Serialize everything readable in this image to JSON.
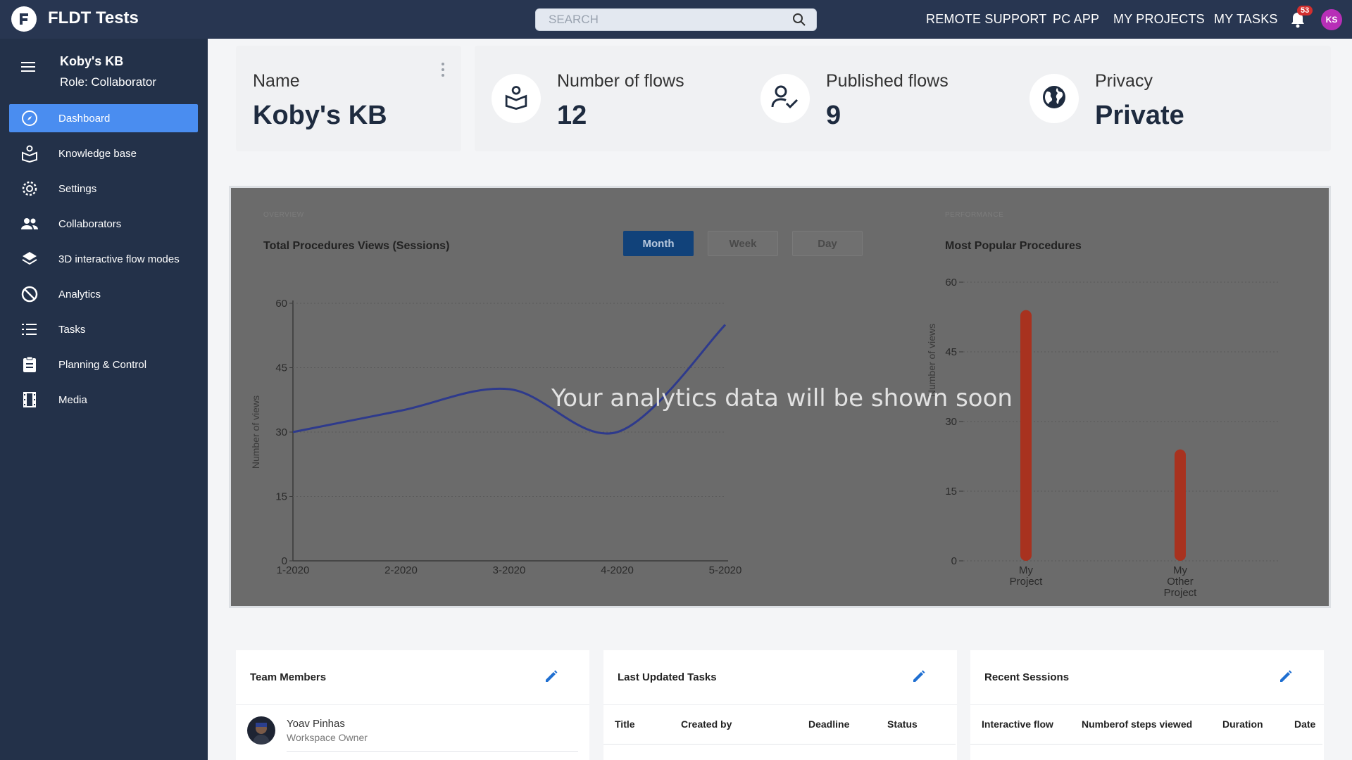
{
  "app": {
    "title": "FLDT Tests"
  },
  "search": {
    "placeholder": "SEARCH"
  },
  "topnav": [
    "REMOTE SUPPORT",
    "PC APP",
    "MY PROJECTS",
    "MY TASKS"
  ],
  "notifications": {
    "count": "53"
  },
  "user": {
    "initials": "KS"
  },
  "sidebar": {
    "kb_name": "Koby's KB",
    "role": "Role: Collaborator",
    "items": [
      {
        "label": "Dashboard",
        "icon": "compass-icon",
        "active": true
      },
      {
        "label": "Knowledge base",
        "icon": "book-user-icon"
      },
      {
        "label": "Settings",
        "icon": "gear-icon"
      },
      {
        "label": "Collaborators",
        "icon": "people-icon"
      },
      {
        "label": "3D interactive flow modes",
        "icon": "layers-icon"
      },
      {
        "label": "Analytics",
        "icon": "analytics-icon"
      },
      {
        "label": "Tasks",
        "icon": "list-icon"
      },
      {
        "label": "Planning & Control",
        "icon": "clipboard-icon"
      },
      {
        "label": "Media",
        "icon": "film-icon"
      }
    ]
  },
  "stats": {
    "name_label": "Name",
    "name_value": "Koby's KB",
    "flows_label": "Number of flows",
    "flows_value": "12",
    "published_label": "Published flows",
    "published_value": "9",
    "privacy_label": "Privacy",
    "privacy_value": "Private"
  },
  "analytics": {
    "overlay": "Your analytics data will be shown soon",
    "overview_sub": "OVERVIEW",
    "overview_title": "Total Procedures Views (Sessions)",
    "performance_sub": "PERFORMANCE",
    "performance_title": "Most Popular Procedures",
    "periods": [
      "Month",
      "Week",
      "Day"
    ],
    "active_period": "Month"
  },
  "chart_data": [
    {
      "type": "line",
      "title": "Total Procedures Views (Sessions)",
      "xlabel": "",
      "ylabel": "Number of views",
      "x": [
        "1-2020",
        "2-2020",
        "3-2020",
        "4-2020",
        "5-2020"
      ],
      "values": [
        30,
        35,
        40,
        30,
        55
      ],
      "ylim": [
        0,
        60
      ],
      "yticks": [
        0,
        15,
        30,
        45,
        60
      ],
      "color": "#2e3a8c"
    },
    {
      "type": "bar",
      "title": "Most Popular Procedures",
      "ylabel": "Number of views",
      "categories": [
        "My Project",
        "My Other Project"
      ],
      "category_lines": [
        [
          "My",
          "Project"
        ],
        [
          "My",
          "Other",
          "Project"
        ]
      ],
      "values": [
        54,
        24
      ],
      "ylim": [
        0,
        60
      ],
      "yticks": [
        0,
        15,
        30,
        45,
        60
      ],
      "color": "#a8321f"
    }
  ],
  "team": {
    "title": "Team Members",
    "members": [
      {
        "name": "Yoav Pinhas",
        "role": "Workspace Owner"
      }
    ]
  },
  "tasks": {
    "title": "Last Updated Tasks",
    "columns": [
      "Title",
      "Created by",
      "Deadline",
      "Status"
    ]
  },
  "sessions": {
    "title": "Recent Sessions",
    "columns": [
      "Interactive flow",
      "Numberof steps viewed",
      "Duration",
      "Date"
    ]
  }
}
